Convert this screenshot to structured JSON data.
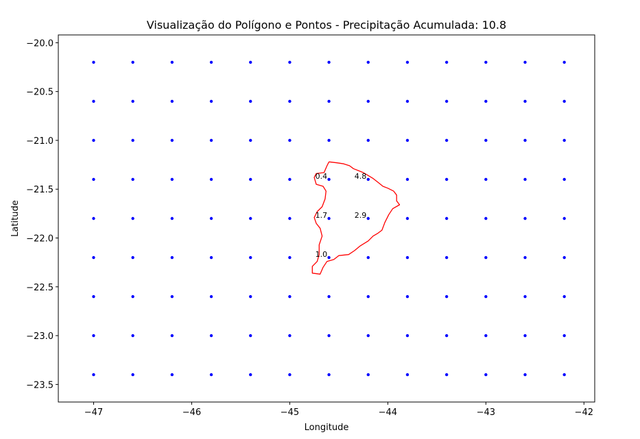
{
  "chart_data": {
    "type": "scatter",
    "title": "Visualização do Polígono e Pontos - Precipitação Acumulada: 10.8",
    "xlabel": "Longitude",
    "ylabel": "Latitude",
    "xlim": [
      -47.36,
      -41.89
    ],
    "ylim": [
      -23.68,
      -19.92
    ],
    "xticks": [
      -47,
      -46,
      -45,
      -44,
      -43,
      -42
    ],
    "yticks": [
      -20.0,
      -20.5,
      -21.0,
      -21.5,
      -22.0,
      -22.5,
      -23.0,
      -23.5
    ],
    "xtick_labels": [
      "−47",
      "−46",
      "−45",
      "−44",
      "−43",
      "−42"
    ],
    "ytick_labels": [
      "−20.0",
      "−20.5",
      "−21.0",
      "−21.5",
      "−22.0",
      "−22.5",
      "−23.0",
      "−23.5"
    ],
    "grid": false,
    "point_color": "#0000ff",
    "polygon_color": "#ff0000",
    "grid_points": {
      "lons": [
        -47.0,
        -46.6,
        -46.2,
        -45.8,
        -45.4,
        -45.0,
        -44.6,
        -44.2,
        -43.8,
        -43.4,
        -43.0,
        -42.6,
        -42.2
      ],
      "lats": [
        -20.2,
        -20.6,
        -21.0,
        -21.4,
        -21.8,
        -22.2,
        -22.6,
        -23.0,
        -23.4
      ]
    },
    "annotations": [
      {
        "x": -44.6,
        "y": -21.4,
        "text": "0.4"
      },
      {
        "x": -44.2,
        "y": -21.4,
        "text": "4.8"
      },
      {
        "x": -44.6,
        "y": -21.8,
        "text": "1.7"
      },
      {
        "x": -44.2,
        "y": -21.8,
        "text": "2.9"
      },
      {
        "x": -44.6,
        "y": -22.2,
        "text": "1.0"
      }
    ],
    "polygon": [
      [
        -44.6,
        -21.22
      ],
      [
        -44.52,
        -21.23
      ],
      [
        -44.45,
        -21.24
      ],
      [
        -44.39,
        -21.26
      ],
      [
        -44.35,
        -21.29
      ],
      [
        -44.3,
        -21.31
      ],
      [
        -44.25,
        -21.33
      ],
      [
        -44.2,
        -21.36
      ],
      [
        -44.15,
        -21.39
      ],
      [
        -44.1,
        -21.43
      ],
      [
        -44.05,
        -21.47
      ],
      [
        -44.0,
        -21.49
      ],
      [
        -43.94,
        -21.52
      ],
      [
        -43.91,
        -21.56
      ],
      [
        -43.91,
        -21.62
      ],
      [
        -43.88,
        -21.66
      ],
      [
        -43.95,
        -21.7
      ],
      [
        -43.99,
        -21.76
      ],
      [
        -44.03,
        -21.84
      ],
      [
        -44.06,
        -21.92
      ],
      [
        -44.1,
        -21.95
      ],
      [
        -44.15,
        -21.98
      ],
      [
        -44.2,
        -22.03
      ],
      [
        -44.28,
        -22.08
      ],
      [
        -44.34,
        -22.13
      ],
      [
        -44.4,
        -22.17
      ],
      [
        -44.5,
        -22.18
      ],
      [
        -44.55,
        -22.22
      ],
      [
        -44.62,
        -22.24
      ],
      [
        -44.66,
        -22.3
      ],
      [
        -44.69,
        -22.37
      ],
      [
        -44.77,
        -22.36
      ],
      [
        -44.77,
        -22.29
      ],
      [
        -44.72,
        -22.24
      ],
      [
        -44.7,
        -22.17
      ],
      [
        -44.7,
        -22.07
      ],
      [
        -44.67,
        -21.98
      ],
      [
        -44.69,
        -21.9
      ],
      [
        -44.73,
        -21.85
      ],
      [
        -44.75,
        -21.79
      ],
      [
        -44.72,
        -21.73
      ],
      [
        -44.67,
        -21.68
      ],
      [
        -44.64,
        -21.6
      ],
      [
        -44.63,
        -21.52
      ],
      [
        -44.66,
        -21.47
      ],
      [
        -44.73,
        -21.45
      ],
      [
        -44.75,
        -21.38
      ],
      [
        -44.73,
        -21.34
      ],
      [
        -44.65,
        -21.33
      ],
      [
        -44.62,
        -21.26
      ],
      [
        -44.6,
        -21.22
      ]
    ]
  }
}
